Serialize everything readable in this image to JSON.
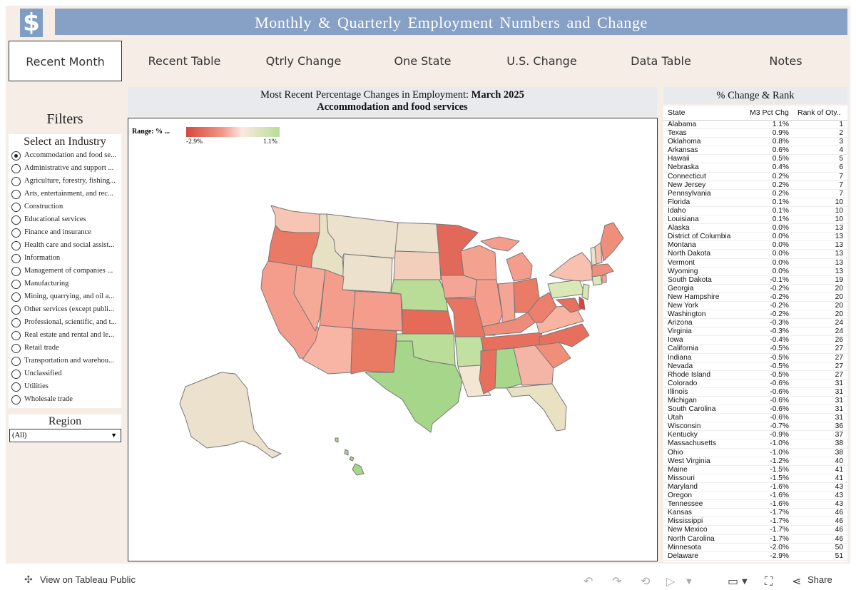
{
  "header": {
    "logo_glyph": "$",
    "title": "Monthly & Quarterly Employment Numbers and Change"
  },
  "tabs": [
    {
      "label": "Recent Month",
      "active": true
    },
    {
      "label": "Recent Table",
      "active": false
    },
    {
      "label": "Qtrly Change",
      "active": false
    },
    {
      "label": "One State",
      "active": false
    },
    {
      "label": "U.S. Change",
      "active": false
    },
    {
      "label": "Data Table",
      "active": false
    },
    {
      "label": "Notes",
      "active": false
    }
  ],
  "filters": {
    "title": "Filters",
    "industry_header": "Select an Industry",
    "industries": [
      "Accommodation and food se...",
      "Administrative and support ...",
      "Agriculture, forestry, fishing...",
      "Arts, entertainment, and rec...",
      "Construction",
      "Educational services",
      "Finance and insurance",
      "Health care and social assist...",
      "Information",
      "Management of companies ...",
      "Manufacturing",
      "Mining, quarrying, and oil a...",
      "Other services (except publi...",
      "Professional, scientific, and t...",
      "Real estate and rental and le...",
      "Retail trade",
      "Transportation and warehou...",
      "Unclassified",
      "Utilities",
      "Wholesale trade"
    ],
    "selected_industry_index": 0,
    "region_header": "Region",
    "region_value": "(All)"
  },
  "map": {
    "title_line1_prefix": "Most Recent Percentage Changes in Employment: ",
    "title_line1_period": "March 2025",
    "title_line2": "Accommodation and food services",
    "legend_label": "Range: % ...",
    "legend_min": "-2.9%",
    "legend_max": "1.1%",
    "colors": {
      "min": "#d5473b",
      "mid": "#fbe9e1",
      "max": "#b8de96"
    }
  },
  "rank": {
    "header": "% Change & Rank",
    "col_state": "State",
    "col_pct": "M3 Pct Chg",
    "col_rank": "Rank of Oty..",
    "rows": [
      [
        "Alabama",
        "1.1%",
        "1"
      ],
      [
        "Texas",
        "0.9%",
        "2"
      ],
      [
        "Oklahoma",
        "0.8%",
        "3"
      ],
      [
        "Arkansas",
        "0.6%",
        "4"
      ],
      [
        "Hawaii",
        "0.5%",
        "5"
      ],
      [
        "Nebraska",
        "0.4%",
        "6"
      ],
      [
        "Connecticut",
        "0.2%",
        "7"
      ],
      [
        "New Jersey",
        "0.2%",
        "7"
      ],
      [
        "Pennsylvania",
        "0.2%",
        "7"
      ],
      [
        "Florida",
        "0.1%",
        "10"
      ],
      [
        "Idaho",
        "0.1%",
        "10"
      ],
      [
        "Louisiana",
        "0.1%",
        "10"
      ],
      [
        "Alaska",
        "0.0%",
        "13"
      ],
      [
        "District of Columbia",
        "0.0%",
        "13"
      ],
      [
        "Montana",
        "0.0%",
        "13"
      ],
      [
        "North Dakota",
        "0.0%",
        "13"
      ],
      [
        "Vermont",
        "0.0%",
        "13"
      ],
      [
        "Wyoming",
        "0.0%",
        "13"
      ],
      [
        "South Dakota",
        "-0.1%",
        "19"
      ],
      [
        "Georgia",
        "-0.2%",
        "20"
      ],
      [
        "New Hampshire",
        "-0.2%",
        "20"
      ],
      [
        "New York",
        "-0.2%",
        "20"
      ],
      [
        "Washington",
        "-0.2%",
        "20"
      ],
      [
        "Arizona",
        "-0.3%",
        "24"
      ],
      [
        "Virginia",
        "-0.3%",
        "24"
      ],
      [
        "Iowa",
        "-0.4%",
        "26"
      ],
      [
        "California",
        "-0.5%",
        "27"
      ],
      [
        "Indiana",
        "-0.5%",
        "27"
      ],
      [
        "Nevada",
        "-0.5%",
        "27"
      ],
      [
        "Rhode Island",
        "-0.5%",
        "27"
      ],
      [
        "Colorado",
        "-0.6%",
        "31"
      ],
      [
        "Illinois",
        "-0.6%",
        "31"
      ],
      [
        "Michigan",
        "-0.6%",
        "31"
      ],
      [
        "South Carolina",
        "-0.6%",
        "31"
      ],
      [
        "Utah",
        "-0.6%",
        "31"
      ],
      [
        "Wisconsin",
        "-0.7%",
        "36"
      ],
      [
        "Kentucky",
        "-0.9%",
        "37"
      ],
      [
        "Massachusetts",
        "-1.0%",
        "38"
      ],
      [
        "Ohio",
        "-1.0%",
        "38"
      ],
      [
        "West Virginia",
        "-1.2%",
        "40"
      ],
      [
        "Maine",
        "-1.5%",
        "41"
      ],
      [
        "Missouri",
        "-1.5%",
        "41"
      ],
      [
        "Maryland",
        "-1.6%",
        "43"
      ],
      [
        "Oregon",
        "-1.6%",
        "43"
      ],
      [
        "Tennessee",
        "-1.6%",
        "43"
      ],
      [
        "Kansas",
        "-1.7%",
        "46"
      ],
      [
        "Mississippi",
        "-1.7%",
        "46"
      ],
      [
        "New Mexico",
        "-1.7%",
        "46"
      ],
      [
        "North Carolina",
        "-1.7%",
        "46"
      ],
      [
        "Minnesota",
        "-2.0%",
        "50"
      ],
      [
        "Delaware",
        "-2.9%",
        "51"
      ]
    ]
  },
  "footer": {
    "view_label": "View on Tableau Public",
    "share_label": "Share"
  }
}
